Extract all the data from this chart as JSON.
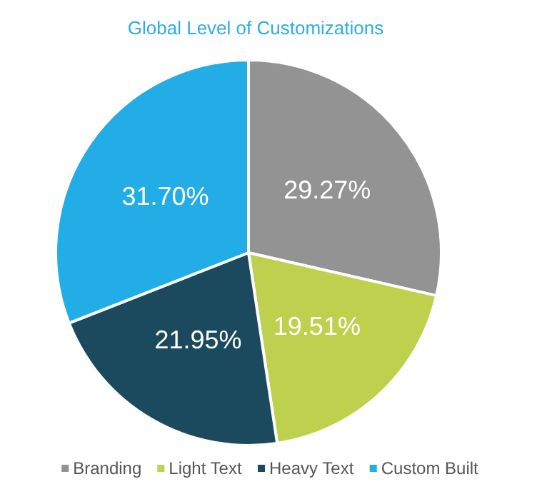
{
  "chart_data": {
    "type": "pie",
    "title": "Global Level of Customizations",
    "categories": [
      "Branding",
      "Light Text",
      "Heavy Text",
      "Custom Built"
    ],
    "values": [
      29.27,
      19.51,
      21.95,
      31.7
    ],
    "colors": [
      "#939393",
      "#bdd14f",
      "#1b4a5f",
      "#22ade6"
    ],
    "value_labels": [
      "29.27%",
      "19.51%",
      "21.95%",
      "31.70%"
    ],
    "legend": "bottom"
  }
}
